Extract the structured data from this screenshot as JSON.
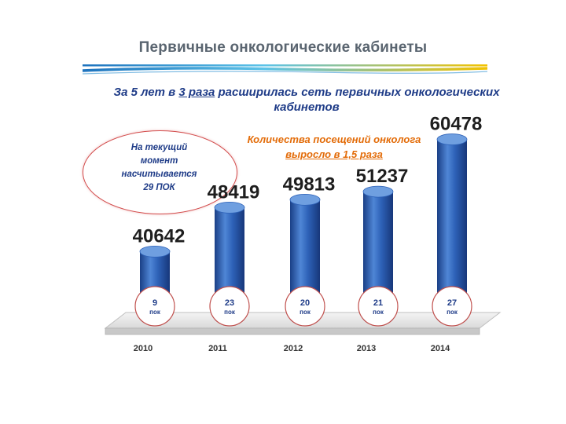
{
  "slide": {
    "title": "Первичные онкологические кабинеты",
    "headline_parts": [
      "За 5 лет в ",
      "3  раза",
      " расширилась  сеть первичных онкологических кабинетов"
    ],
    "visits_note_parts": [
      "Количества  посещений  онколога ",
      "выросло  в 1,5 раза"
    ],
    "oval_lines": [
      "На текущий",
      "момент",
      "насчитывается",
      "29 ПОК"
    ]
  },
  "colors": {
    "bar": "#2e62b8",
    "bar_dark": "#1a3f86",
    "bar_light": "#5d8fd8",
    "text_headline": "#1f3c88",
    "text_note": "#e36c09",
    "oval_border": "#d24b4b",
    "circle_border": "#c0504d"
  },
  "chart_data": {
    "type": "bar",
    "categories": [
      "2010",
      "2011",
      "2012",
      "2013",
      "2014"
    ],
    "values": [
      40642,
      48419,
      49813,
      51237,
      60478
    ],
    "value_labels": [
      "40642",
      "48419",
      "49813",
      "51237",
      "60478"
    ],
    "cabinet_counts": [
      "9",
      "23",
      "20",
      "21",
      "27"
    ],
    "cabinet_unit": "пок",
    "title": "",
    "xlabel": "",
    "ylabel": "",
    "ylim": [
      0,
      65000
    ],
    "grid": false,
    "legend": "none"
  }
}
